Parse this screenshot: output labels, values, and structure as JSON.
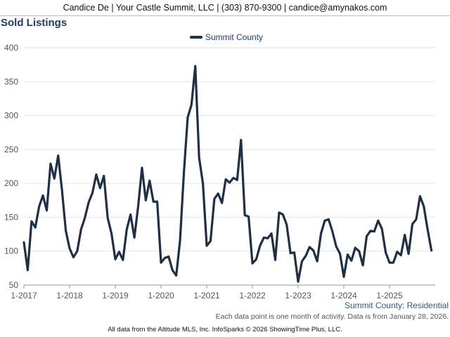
{
  "header": {
    "text": "Candice De | Your Castle Summit, LLC | (303) 870-9300 | candice@amynakos.com"
  },
  "page_title": "Sold Listings",
  "subtitle": "Summit County: Residential",
  "note": "Each data point is one month of activity. Data is from January 28, 2026.",
  "footer": "All data from the Altitude MLS, Inc. InfoSparks © 2026 ShowingTime Plus, LLC.",
  "colors": {
    "series": "#1f3044",
    "title": "#1f3d6b",
    "grid": "#e2e2e2"
  },
  "chart_data": {
    "type": "line",
    "title": "Sold Listings",
    "ylim": [
      50,
      400
    ],
    "yticks": [
      50,
      100,
      150,
      200,
      250,
      300,
      350,
      400
    ],
    "xlim": [
      "2017-01",
      "2026-01"
    ],
    "xticks": [
      {
        "label": "1-2017",
        "x": "2017-01"
      },
      {
        "label": "1-2018",
        "x": "2018-01"
      },
      {
        "label": "1-2019",
        "x": "2019-01"
      },
      {
        "label": "1-2020",
        "x": "2020-01"
      },
      {
        "label": "1-2021",
        "x": "2021-01"
      },
      {
        "label": "1-2022",
        "x": "2022-01"
      },
      {
        "label": "1-2023",
        "x": "2023-01"
      },
      {
        "label": "1-2024",
        "x": "2024-01"
      },
      {
        "label": "1-2025",
        "x": "2025-01"
      }
    ],
    "grid": true,
    "legend_position": "top-center",
    "series": [
      {
        "name": "Summit County",
        "x_start": "2017-01",
        "frequency": "monthly",
        "values": [
          113,
          72,
          144,
          135,
          166,
          182,
          160,
          229,
          207,
          241,
          190,
          130,
          104,
          91,
          100,
          132,
          149,
          172,
          186,
          213,
          193,
          211,
          149,
          126,
          88,
          99,
          87,
          132,
          154,
          120,
          166,
          223,
          175,
          204,
          173,
          173,
          83,
          90,
          92,
          72,
          64,
          116,
          215,
          297,
          316,
          373,
          238,
          200,
          108,
          115,
          177,
          185,
          171,
          206,
          201,
          208,
          205,
          264,
          153,
          151,
          82,
          88,
          108,
          120,
          119,
          126,
          87,
          157,
          154,
          139,
          97,
          98,
          55,
          85,
          93,
          106,
          101,
          85,
          126,
          145,
          147,
          129,
          107,
          96,
          62,
          95,
          86,
          105,
          100,
          79,
          122,
          130,
          129,
          145,
          133,
          98,
          83,
          83,
          99,
          94,
          124,
          96,
          140,
          147,
          181,
          166,
          132,
          101
        ]
      }
    ]
  }
}
